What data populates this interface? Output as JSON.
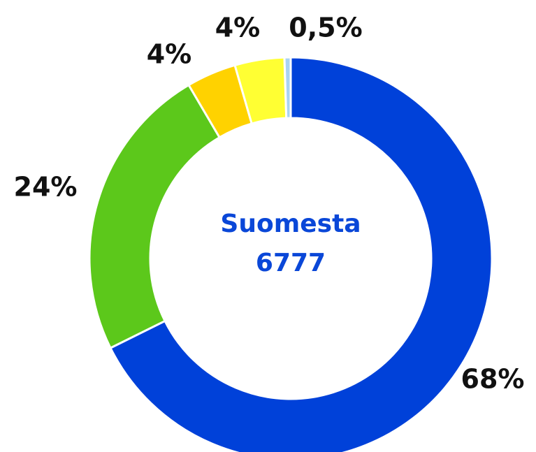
{
  "chart_data": {
    "type": "donut",
    "center_label": "Suomesta",
    "total": 6777,
    "categories": [
      null,
      null,
      null,
      null,
      null
    ],
    "values": [
      68,
      24,
      4,
      4,
      0.5
    ],
    "value_labels": [
      "68%",
      "24%",
      "4%",
      "4%",
      "0,5%"
    ],
    "colors": [
      "#0041d9",
      "#5cc81b",
      "#ffd200",
      "#ffff33",
      "#a9d3f2"
    ]
  }
}
